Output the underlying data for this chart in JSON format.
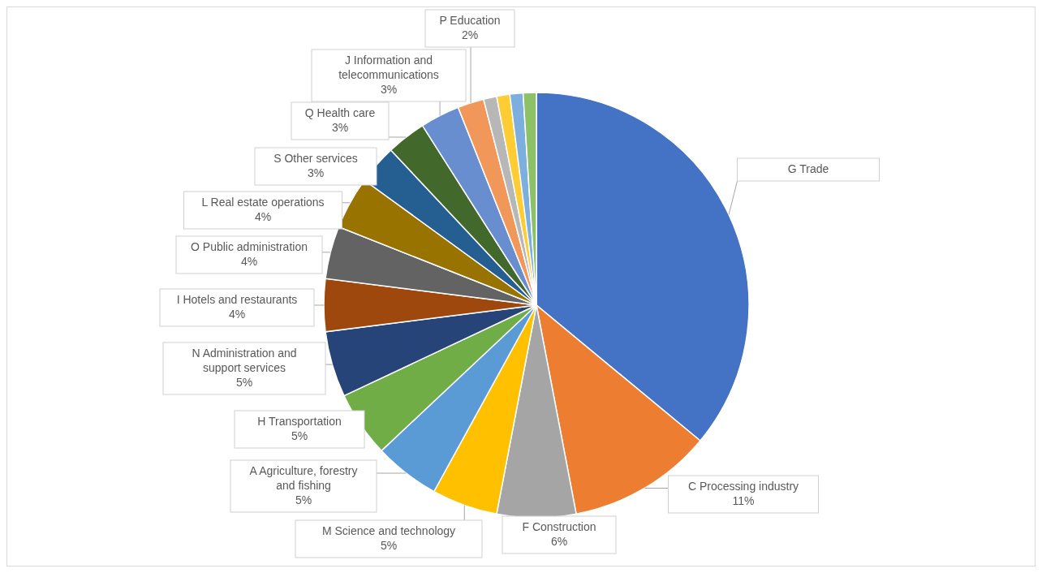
{
  "chart_data": {
    "type": "pie",
    "categories": [
      "G Trade",
      "C Processing industry",
      "F Construction",
      "M Science and technology",
      "A Agriculture, forestry and fishing",
      "H Transportation",
      "N Administration and support services",
      "I Hotels and restaurants",
      "O Public administration",
      "L Real estate operations",
      "S Other services",
      "Q Health care",
      "J Information and telecommunications",
      "P Education",
      null,
      null,
      null,
      null
    ],
    "values": [
      36,
      11,
      6,
      5,
      5,
      5,
      5,
      4,
      4,
      4,
      3,
      3,
      3,
      2,
      1,
      1,
      1,
      1
    ],
    "colors": [
      "#4472c4",
      "#ed7d31",
      "#a5a5a5",
      "#ffc000",
      "#5b9bd5",
      "#70ad47",
      "#264478",
      "#9e480e",
      "#636363",
      "#997300",
      "#255e91",
      "#43682b",
      "#698ed0",
      "#f1975a",
      "#b7b7b7",
      "#ffcd33",
      "#7cafdd",
      "#8cc168"
    ],
    "value_labels": [
      null,
      "11%",
      "6%",
      "5%",
      "5%",
      "5%",
      "5%",
      "4%",
      "4%",
      "4%",
      "3%",
      "3%",
      "3%",
      "2%",
      null,
      null,
      null,
      null
    ]
  }
}
